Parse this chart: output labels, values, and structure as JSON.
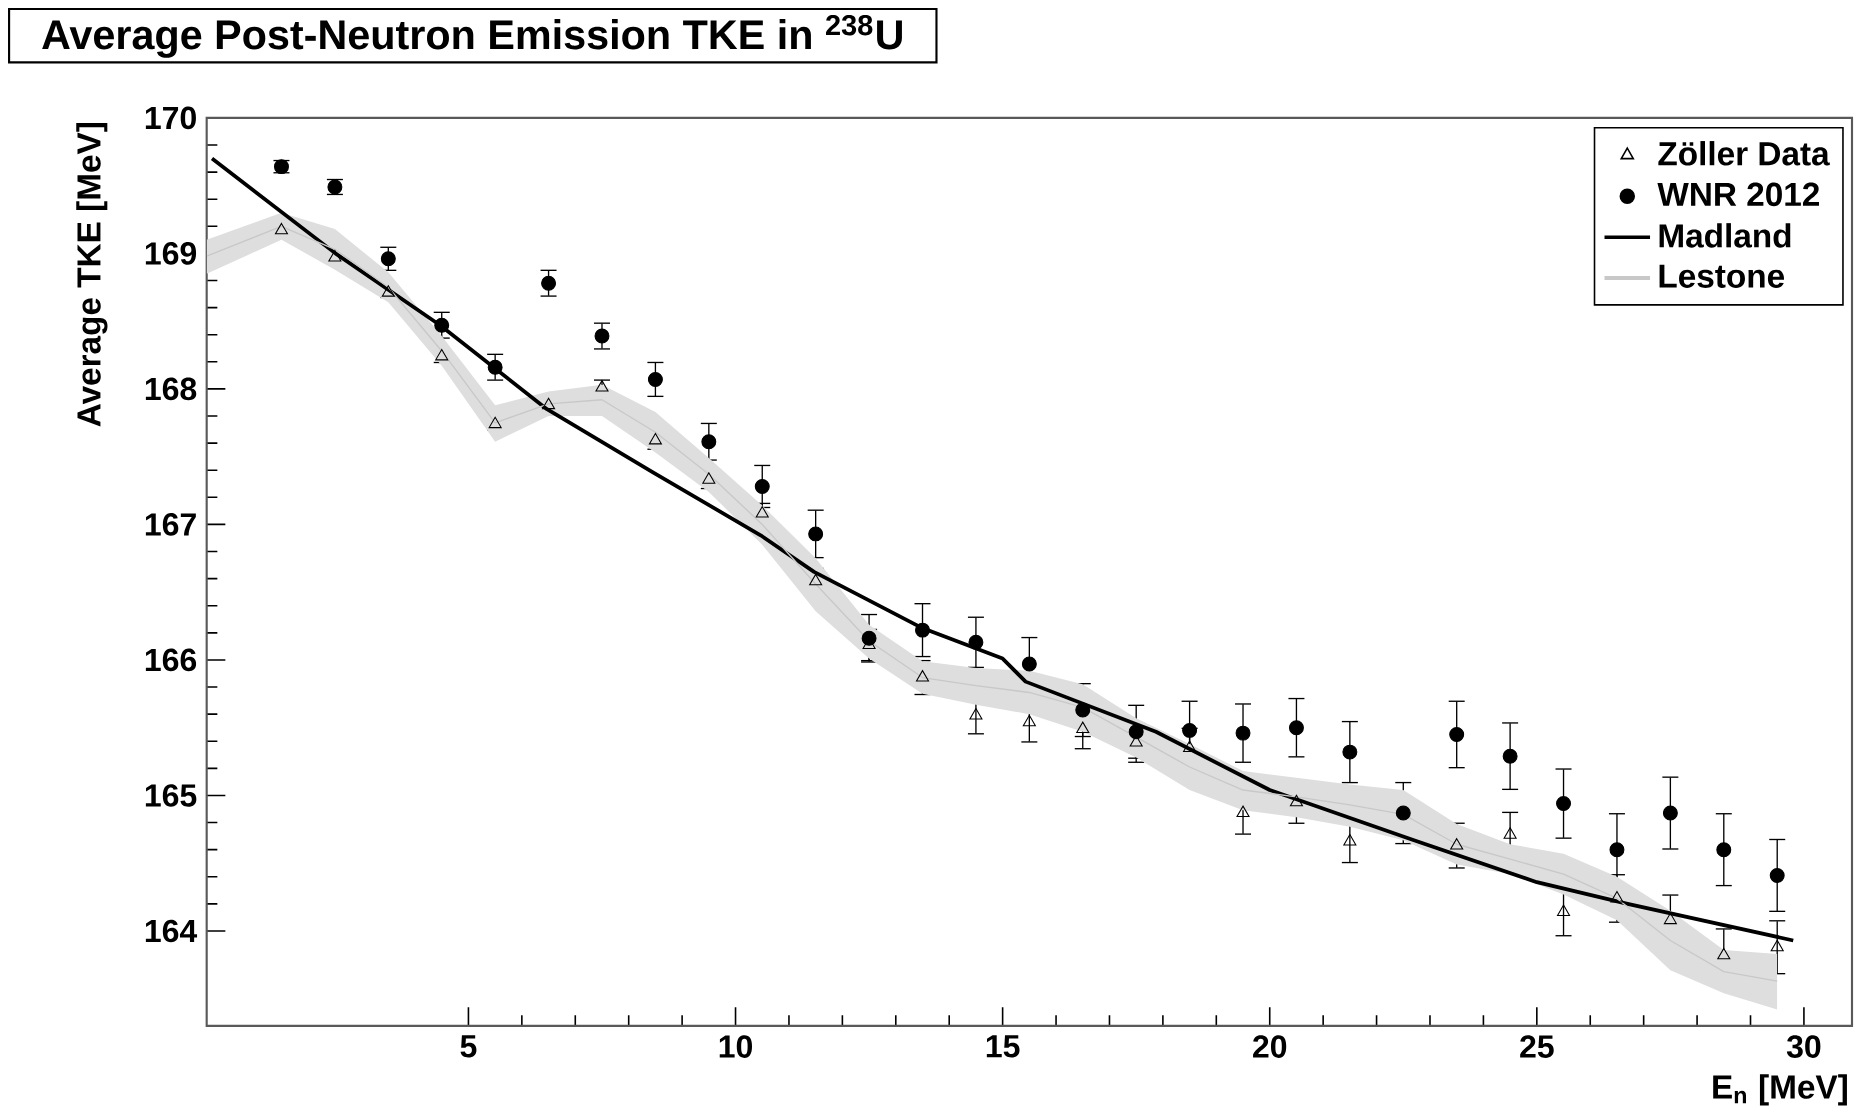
{
  "chart_data": {
    "type": "scatter",
    "title": "Average Post-Neutron Emission TKE in $^{238}$U",
    "xlabel": "E$_{n}$ [MeV]",
    "ylabel": "Average TKE [MeV]",
    "x": [
      1.5,
      2.5,
      3.5,
      4.5,
      5.5,
      6.5,
      7.5,
      8.5,
      9.5,
      10.5,
      11.5,
      12.5,
      13.5,
      14.5,
      15.5,
      16.5,
      17.5,
      18.5,
      19.5,
      20.5,
      21.5,
      22.5,
      23.5,
      24.5,
      25.5,
      26.5,
      27.5,
      28.5,
      29.5
    ],
    "series": [
      {
        "name": "Zöller Data",
        "marker": "triangle",
        "color": "#000000",
        "values": [
          169.17,
          168.97,
          168.71,
          168.24,
          167.74,
          167.88,
          168.01,
          167.62,
          167.33,
          167.08,
          166.58,
          166.11,
          165.87,
          165.59,
          165.54,
          165.49,
          165.39,
          165.35,
          164.87,
          164.95,
          164.66,
          null,
          164.63,
          164.71,
          164.14,
          164.24,
          164.08,
          163.82,
          163.88
        ],
        "errors": [
          0.04,
          0.04,
          0.04,
          0.05,
          0.05,
          0.05,
          0.06,
          0.07,
          0.07,
          0.08,
          0.1,
          0.12,
          0.13,
          0.14,
          0.15,
          0.15,
          0.15,
          0.15,
          0.16,
          0.16,
          0.16,
          null,
          0.17,
          0.17,
          0.18,
          0.18,
          0.19,
          0.2,
          0.2
        ]
      },
      {
        "name": "WNR 2012",
        "marker": "circle",
        "color": "#000000",
        "values": [
          169.64,
          169.49,
          168.96,
          168.47,
          168.16,
          168.78,
          168.39,
          168.07,
          167.61,
          167.28,
          166.93,
          166.16,
          166.22,
          166.13,
          165.97,
          165.63,
          165.47,
          165.48,
          165.46,
          165.5,
          165.32,
          164.87,
          165.45,
          165.29,
          164.94,
          164.6,
          164.87,
          164.6,
          164.41
        ],
        "errors": [
          0.05,
          0.06,
          0.09,
          0.1,
          0.1,
          0.1,
          0.1,
          0.13,
          0.14,
          0.16,
          0.18,
          0.18,
          0.2,
          0.19,
          0.2,
          0.2,
          0.2,
          0.22,
          0.22,
          0.22,
          0.23,
          0.23,
          0.25,
          0.25,
          0.26,
          0.27,
          0.27,
          0.27,
          0.27
        ]
      },
      {
        "name": "Madland",
        "type": "line",
        "marker": "none",
        "color": "#000000",
        "x": [
          0.2,
          2.51,
          4.47,
          6.47,
          8.47,
          10.47,
          11.47,
          13.47,
          15.0,
          15.43,
          17.87,
          20.0,
          22.7,
          25.0,
          26.7,
          29.8
        ],
        "values": [
          169.7,
          169.0,
          168.47,
          167.85,
          167.38,
          166.92,
          166.65,
          166.24,
          166.01,
          165.84,
          165.47,
          165.04,
          164.67,
          164.36,
          164.2,
          163.93
        ]
      },
      {
        "name": "Lestone",
        "type": "line",
        "marker": "none",
        "color": "#c8c8c8",
        "x": [
          0.1,
          1.5,
          2.5,
          3.5,
          4.5,
          5.5,
          6.5,
          7.5,
          8.5,
          9.5,
          10.5,
          11.5,
          12.5,
          13.5,
          14.5,
          15.5,
          16.5,
          17.5,
          18.5,
          19.5,
          20.5,
          21.5,
          22.5,
          23.5,
          24.5,
          25.5,
          26.5,
          27.5,
          28.5,
          29.5
        ],
        "values": [
          168.98,
          169.2,
          169.03,
          168.75,
          168.28,
          167.75,
          167.89,
          167.92,
          167.68,
          167.37,
          167.0,
          166.56,
          166.14,
          165.87,
          165.81,
          165.76,
          165.65,
          165.43,
          165.21,
          165.04,
          164.99,
          164.93,
          164.86,
          164.64,
          164.53,
          164.42,
          164.24,
          163.93,
          163.7,
          163.63
        ],
        "upper": [
          169.1,
          169.3,
          169.18,
          168.86,
          168.39,
          167.88,
          167.98,
          168.03,
          167.83,
          167.49,
          167.14,
          166.75,
          166.26,
          165.99,
          165.94,
          165.92,
          165.82,
          165.57,
          165.38,
          165.18,
          165.13,
          165.08,
          165.04,
          164.79,
          164.64,
          164.57,
          164.4,
          164.15,
          163.86,
          163.83
        ],
        "lower": [
          168.85,
          169.1,
          168.88,
          168.64,
          168.17,
          167.61,
          167.8,
          167.8,
          167.53,
          167.24,
          166.85,
          166.36,
          166.01,
          165.75,
          165.67,
          165.6,
          165.47,
          165.28,
          165.04,
          164.89,
          164.84,
          164.77,
          164.67,
          164.49,
          164.42,
          164.27,
          164.08,
          163.71,
          163.54,
          163.42
        ]
      }
    ],
    "xlim": [
      0.1,
      30.9
    ],
    "ylim": [
      163.3,
      170
    ],
    "xticks": [
      5,
      10,
      15,
      20,
      25,
      30
    ],
    "yticks": [
      164,
      165,
      166,
      167,
      168,
      169,
      170
    ],
    "grid": false,
    "legend": "top right"
  }
}
